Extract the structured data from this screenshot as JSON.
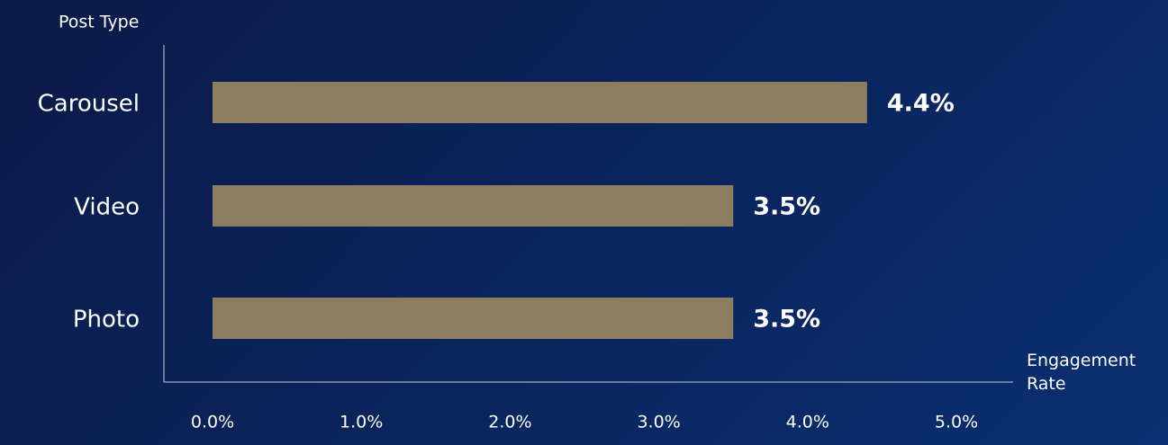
{
  "chart_data": {
    "type": "bar",
    "orientation": "horizontal",
    "y_axis_label": "Post Type",
    "x_axis_label": "Engagement Rate",
    "categories": [
      "Carousel",
      "Video",
      "Photo"
    ],
    "values": [
      4.4,
      3.5,
      3.5
    ],
    "value_labels": [
      "4.4%",
      "3.5%",
      "3.5%"
    ],
    "color": "#8b7d5f",
    "xlim": [
      0,
      5
    ],
    "xticks": [
      {
        "value": 0,
        "label": "0.0%"
      },
      {
        "value": 1,
        "label": "1.0%"
      },
      {
        "value": 2,
        "label": "2.0%"
      },
      {
        "value": 3,
        "label": "3.0%"
      },
      {
        "value": 4,
        "label": "4.0%"
      },
      {
        "value": 5,
        "label": "5.0%"
      }
    ],
    "grid": false
  }
}
